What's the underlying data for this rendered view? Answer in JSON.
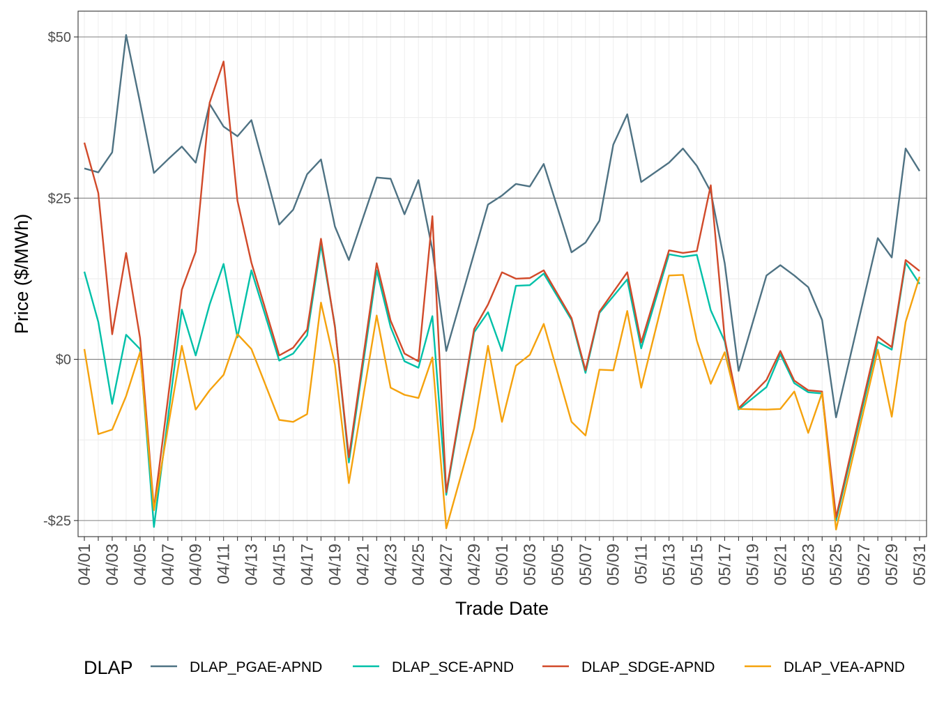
{
  "chart_data": {
    "type": "line",
    "title": "",
    "xlabel": "Trade Date",
    "ylabel": "Price ($/MWh)",
    "legend_title": "DLAP",
    "legend_position": "bottom",
    "grid": true,
    "x_start": "04/01",
    "x_end": "05/31",
    "ylim": [
      -27.5,
      54
    ],
    "y_ticks": [
      {
        "value": -25,
        "label": "-$25"
      },
      {
        "value": 0,
        "label": "$0"
      },
      {
        "value": 25,
        "label": "$25"
      },
      {
        "value": 50,
        "label": "$50"
      }
    ],
    "x_tick_labels": [
      "04/01",
      "04/03",
      "04/05",
      "04/07",
      "04/09",
      "04/11",
      "04/13",
      "04/15",
      "04/17",
      "04/19",
      "04/21",
      "04/23",
      "04/25",
      "04/27",
      "04/29",
      "05/01",
      "05/03",
      "05/05",
      "05/07",
      "05/09",
      "05/11",
      "05/13",
      "05/15",
      "05/17",
      "05/19",
      "05/21",
      "05/23",
      "05/25",
      "05/27",
      "05/29",
      "05/31"
    ],
    "x": [
      "04/01",
      "04/02",
      "04/03",
      "04/04",
      "04/05",
      "04/06",
      "04/07",
      "04/08",
      "04/09",
      "04/10",
      "04/11",
      "04/12",
      "04/13",
      "04/14",
      "04/15",
      "04/16",
      "04/17",
      "04/18",
      "04/19",
      "04/20",
      "04/21",
      "04/22",
      "04/23",
      "04/24",
      "04/25",
      "04/26",
      "04/27",
      "04/28",
      "04/29",
      "04/30",
      "05/01",
      "05/02",
      "05/03",
      "05/04",
      "05/05",
      "05/06",
      "05/07",
      "05/08",
      "05/09",
      "05/10",
      "05/11",
      "05/12",
      "05/13",
      "05/14",
      "05/15",
      "05/16",
      "05/17",
      "05/18",
      "05/19",
      "05/20",
      "05/21",
      "05/22",
      "05/23",
      "05/24",
      "05/25",
      "05/26",
      "05/27",
      "05/28",
      "05/29",
      "05/30",
      "05/31"
    ],
    "series": [
      {
        "name": "DLAP_PGAE-APND",
        "color": "#4e7283",
        "values": [
          29.6,
          29,
          32.1,
          50.3,
          39.8,
          28.9,
          31,
          33,
          30.5,
          39.6,
          36.1,
          34.6,
          37.1,
          29.1,
          20.9,
          23.2,
          28.7,
          31,
          20.6,
          15.4,
          21.8,
          28.2,
          28,
          22.5,
          27.8,
          17,
          1.3,
          null,
          null,
          24,
          25.4,
          27.2,
          26.8,
          30.3,
          null,
          16.6,
          18.1,
          21.5,
          33.3,
          38,
          27.5,
          null,
          30.5,
          32.7,
          30,
          26,
          14.9,
          -1.8,
          null,
          13,
          14.6,
          13,
          11.2,
          6.1,
          -9,
          null,
          null,
          18.8,
          15.8,
          32.7,
          29.2
        ]
      },
      {
        "name": "DLAP_SCE-APND",
        "color": "#00c0a8",
        "values": [
          13.6,
          5.8,
          -6.9,
          3.8,
          1.6,
          -26,
          null,
          7.7,
          0.6,
          8.5,
          14.8,
          3.4,
          13.8,
          null,
          -0.2,
          0.9,
          3.7,
          17.8,
          5.2,
          -16,
          null,
          13.8,
          5,
          -0.3,
          -1.3,
          6.7,
          -21,
          null,
          4.2,
          7.3,
          1.3,
          11.4,
          11.5,
          13.3,
          null,
          6.1,
          -2.1,
          7.2,
          null,
          12.4,
          1.7,
          null,
          16.3,
          15.9,
          16.2,
          7.6,
          2.8,
          -7.8,
          null,
          -4.3,
          0.8,
          -3.7,
          -5.1,
          -5.3,
          -25,
          null,
          null,
          2.7,
          1.5,
          15,
          11.7
        ]
      },
      {
        "name": "DLAP_SDGE-APND",
        "color": "#d14a2a",
        "values": [
          33.6,
          25.8,
          3.9,
          16.5,
          3.3,
          -23.2,
          null,
          10.8,
          16.7,
          39.8,
          46.2,
          24.6,
          15,
          null,
          0.6,
          1.8,
          4.6,
          18.7,
          5,
          -15.2,
          null,
          14.9,
          6,
          0.9,
          -0.3,
          22.2,
          -20.6,
          null,
          4.7,
          8.5,
          13.5,
          12.5,
          12.6,
          13.8,
          null,
          6.4,
          -1.7,
          7.4,
          null,
          13.5,
          2.6,
          null,
          16.9,
          16.5,
          16.8,
          27,
          3.2,
          -7.6,
          null,
          -3.2,
          1.3,
          -3.3,
          -4.8,
          -5,
          -24.5,
          null,
          null,
          3.5,
          1.9,
          15.4,
          13.7
        ]
      },
      {
        "name": "DLAP_VEA-APND",
        "color": "#f5a20d",
        "values": [
          1.6,
          -11.6,
          -10.9,
          -5.7,
          1.1,
          -23.4,
          null,
          2.1,
          -7.8,
          -4.8,
          -2.4,
          3.9,
          1.6,
          null,
          -9.4,
          -9.7,
          -8.5,
          8.8,
          -0.8,
          -19.2,
          null,
          6.8,
          -4.4,
          -5.5,
          -6,
          0.3,
          -26.2,
          null,
          -10.7,
          2.1,
          -9.7,
          -1,
          0.7,
          5.5,
          null,
          -9.7,
          -11.8,
          -1.6,
          -1.7,
          7.5,
          -4.4,
          null,
          13,
          13.1,
          2.9,
          -3.8,
          1.1,
          -7.7,
          null,
          -7.8,
          -7.7,
          -5,
          -11.4,
          -5.2,
          -26.4,
          null,
          null,
          1.5,
          -8.9,
          5.8,
          12.8
        ]
      }
    ]
  }
}
